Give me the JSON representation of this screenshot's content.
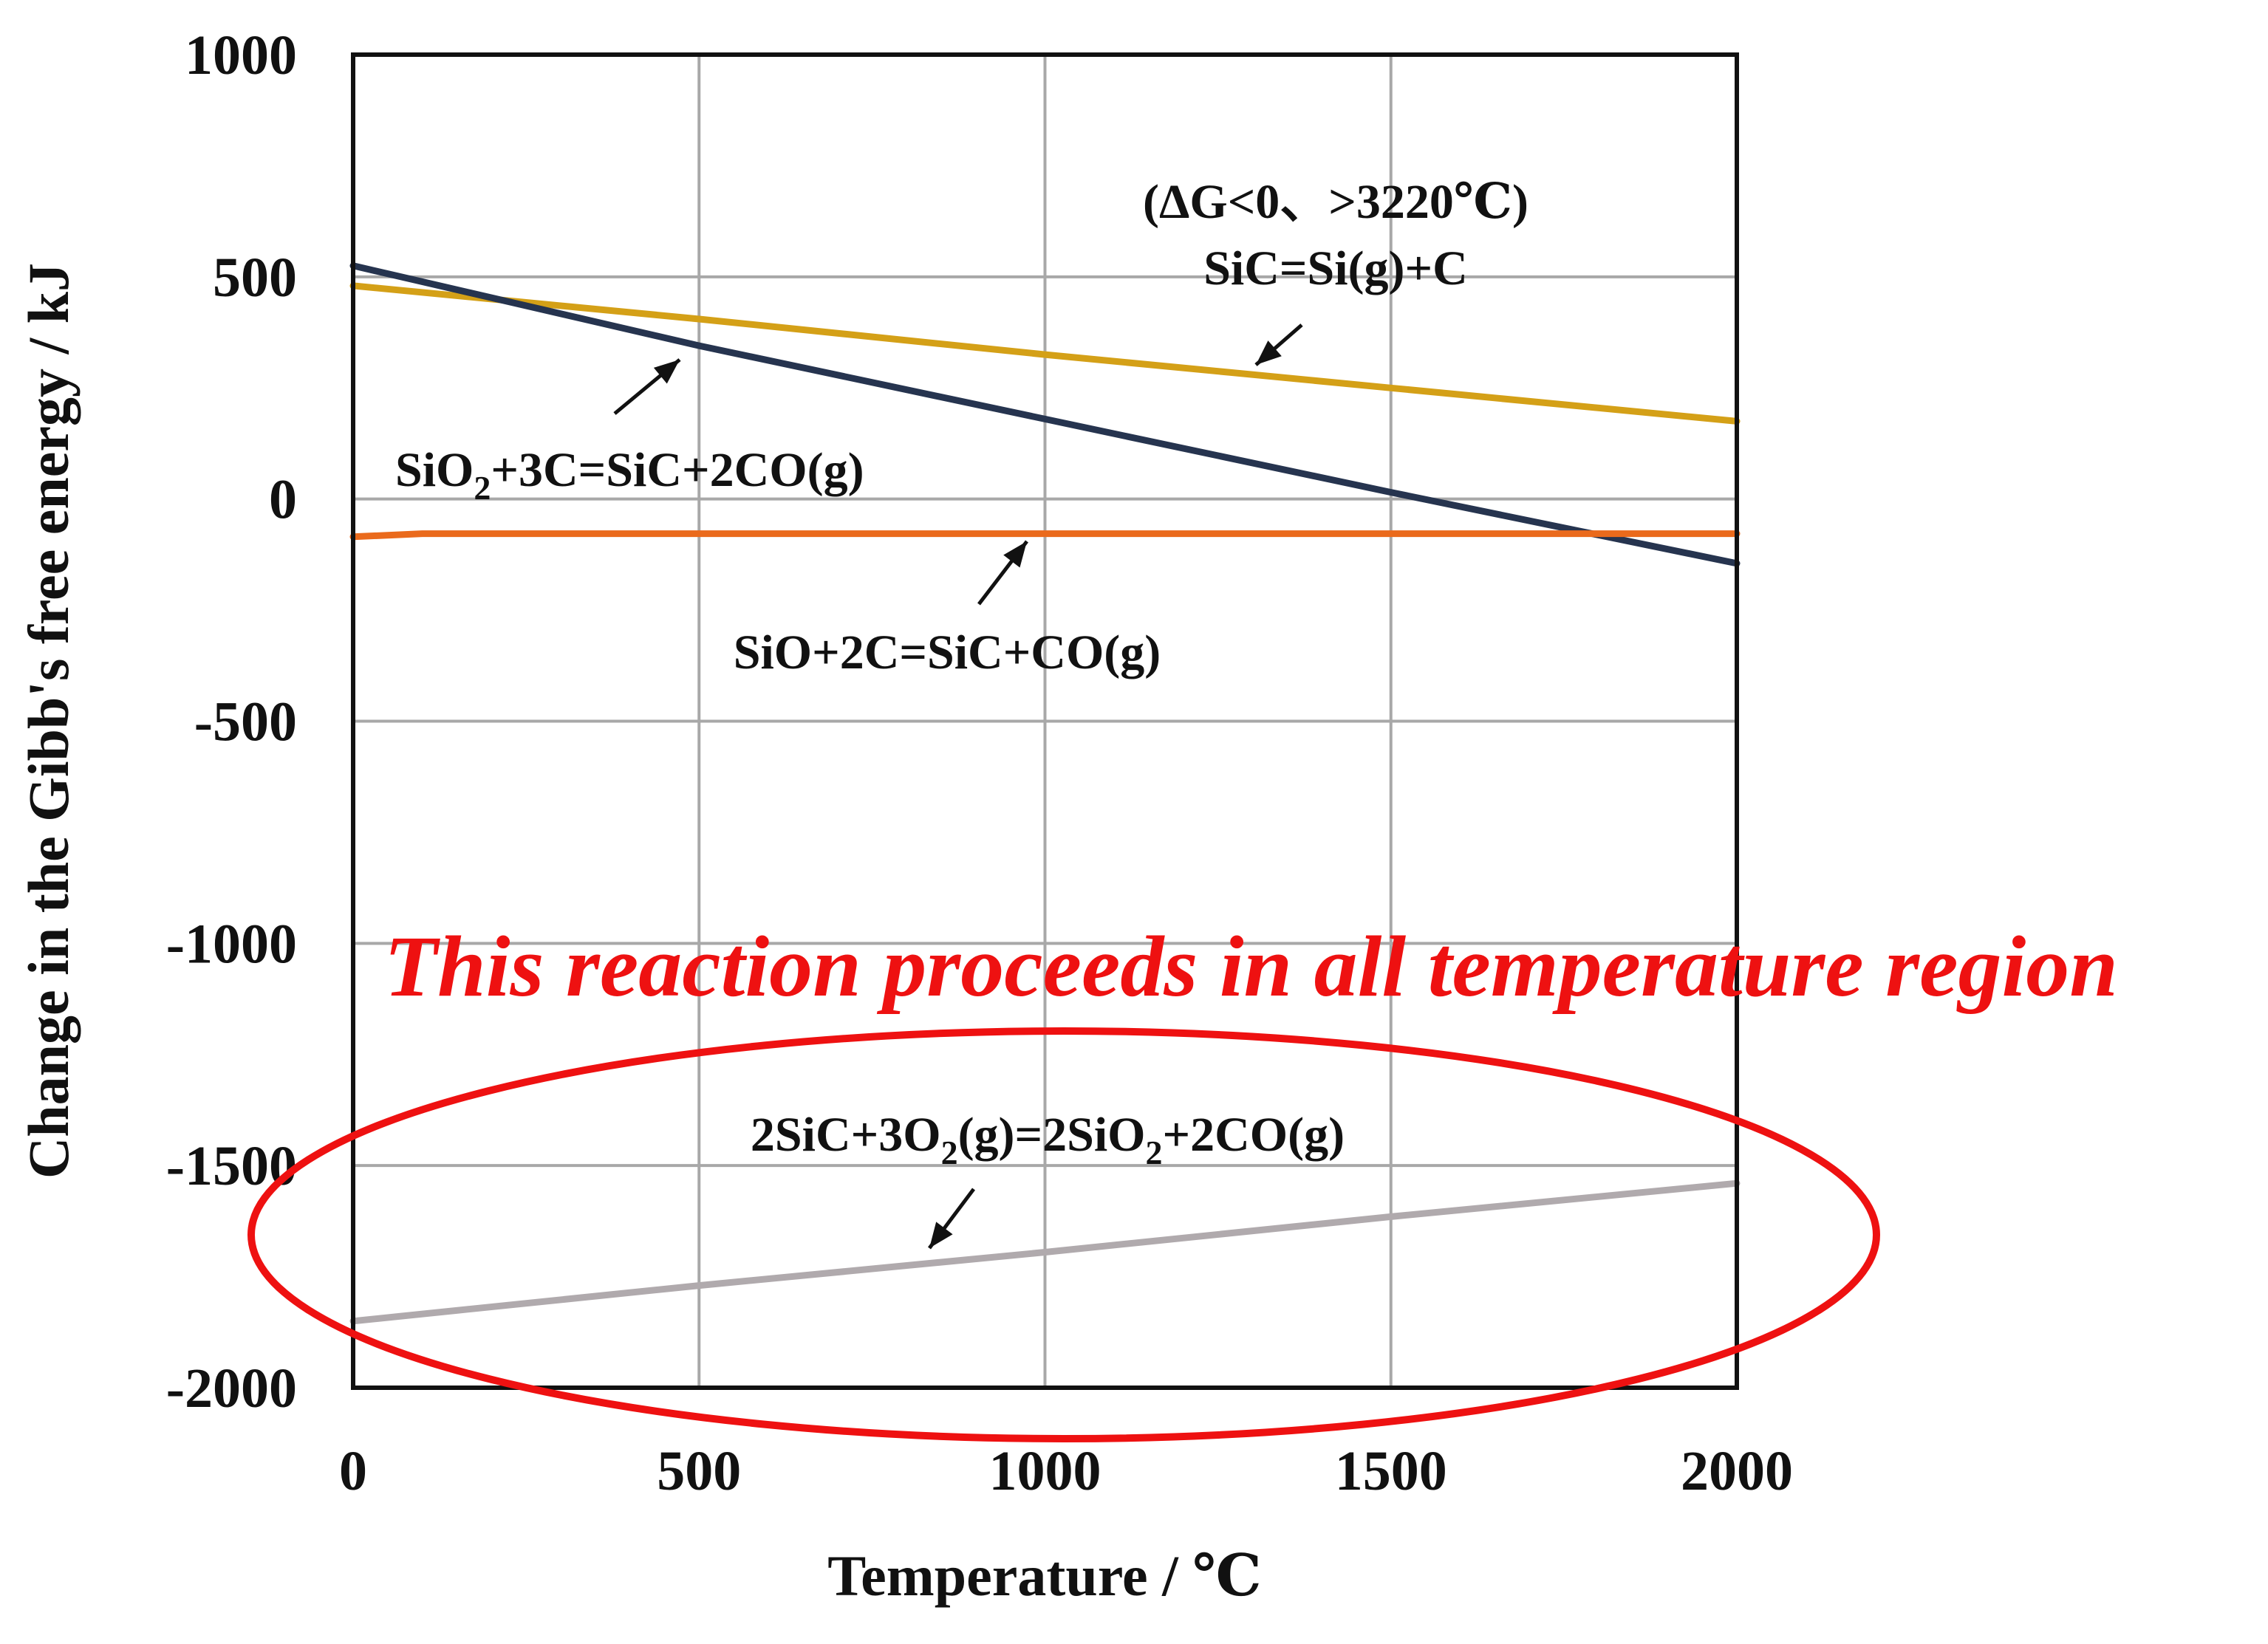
{
  "chart_data": {
    "type": "line",
    "xlabel": "Temperature / ℃",
    "ylabel": "Change in the Gibb's free energy / kJ",
    "xlim": [
      0,
      2000
    ],
    "ylim": [
      -2000,
      1000
    ],
    "xticks": [
      0,
      500,
      1000,
      1500,
      2000
    ],
    "yticks": [
      1000,
      500,
      0,
      -500,
      -1000,
      -1500,
      -2000
    ],
    "xtick_labels": [
      "0",
      "500",
      "1000",
      "1500",
      "2000"
    ],
    "ytick_labels": [
      "1000",
      "500",
      "0",
      "-500",
      "-1000",
      "-1500",
      "-2000"
    ],
    "grid": true,
    "legend": "none",
    "series": [
      {
        "key": "sic_decomp",
        "color": "#d4a017",
        "x": [
          0,
          500,
          1000,
          1500,
          2000
        ],
        "y": [
          480,
          405,
          325,
          250,
          175
        ]
      },
      {
        "key": "sio2_carbo",
        "color": "#26344f",
        "x": [
          0,
          500,
          1000,
          1500,
          2000
        ],
        "y": [
          525,
          345,
          180,
          15,
          -145
        ]
      },
      {
        "key": "sio_carbo",
        "color": "#ea6a1c",
        "x": [
          0,
          100,
          500,
          1000,
          1500,
          2000
        ],
        "y": [
          -85,
          -78,
          -78,
          -78,
          -78,
          -78
        ]
      },
      {
        "key": "sic_oxid",
        "color": "#b0aaad",
        "x": [
          0,
          500,
          1000,
          1500,
          2000
        ],
        "y": [
          -1850,
          -1770,
          -1695,
          -1615,
          -1540
        ]
      }
    ],
    "annotations": {
      "condition": "(ΔG<0、>3220℃)",
      "sic_decomp": "SiC=Si(g)+C",
      "sio2_carbo": {
        "a": "SiO",
        "sub": "2",
        "b": "+3C=SiC+2CO(g)"
      },
      "sio_carbo": "SiO+2C=SiC+CO(g)",
      "sic_oxid": {
        "a": "2SiC+3O",
        "sub1": "2",
        "b": "(g)=2SiO",
        "sub2": "2",
        "c": "+2CO(g)"
      },
      "headline": "This reaction proceeds in all temperature region"
    },
    "highlight_color": "#ee1111"
  }
}
